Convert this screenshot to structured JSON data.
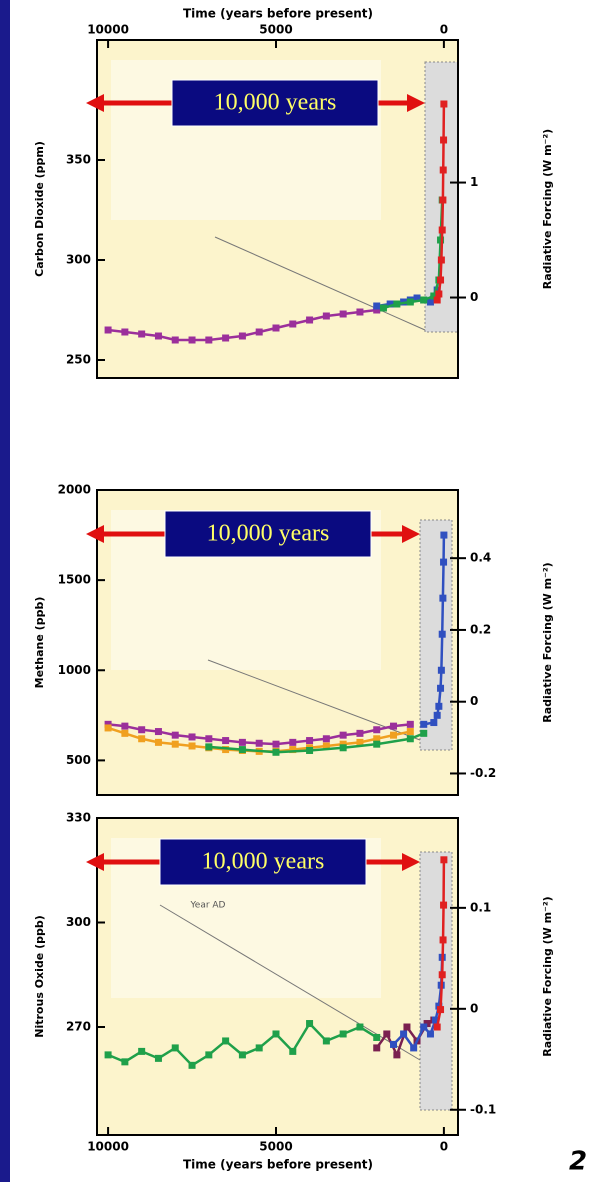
{
  "chart_data": [
    {
      "type": "line",
      "ylabel": "Carbon Dioxide (ppm)",
      "y2label": "Radiative Forcing (W m⁻²)",
      "xlabel": "Time (years before present)",
      "xaxis_position": "top",
      "annotation": "10,000 years",
      "xlim": [
        10330,
        -420
      ],
      "xticks": [
        10000,
        5000,
        0
      ],
      "ylim": [
        241,
        410
      ],
      "yticks": [
        250,
        300,
        350
      ],
      "y2lim": [
        -0.7,
        2.24
      ],
      "y2ticks": [
        0,
        1
      ],
      "series": [
        {
          "color": "#9b2f9b",
          "x": [
            10000,
            9500,
            9000,
            8500,
            8000,
            7500,
            7000,
            6500,
            6000,
            5500,
            5000,
            4500,
            4000,
            3500,
            3000,
            2500,
            2000
          ],
          "values": [
            265,
            264,
            263,
            262,
            260,
            260,
            260,
            261,
            262,
            264,
            266,
            268,
            270,
            272,
            273,
            274,
            275
          ]
        },
        {
          "color": "#3050c0",
          "x": [
            2000,
            1600,
            1200,
            1000,
            800,
            600,
            400,
            300,
            200
          ],
          "values": [
            277,
            278,
            279,
            280,
            281,
            280,
            279,
            281,
            285
          ]
        },
        {
          "color": "#1fa04a",
          "x": [
            1800,
            1400,
            1000,
            600,
            300,
            150,
            100,
            50
          ],
          "values": [
            276,
            278,
            279,
            280,
            282,
            290,
            310,
            330
          ]
        },
        {
          "color": "#e02020",
          "x": [
            200,
            150,
            100,
            75,
            50,
            30,
            20,
            10,
            0
          ],
          "values": [
            280,
            283,
            290,
            300,
            315,
            330,
            345,
            360,
            378
          ]
        }
      ]
    },
    {
      "type": "line",
      "ylabel": "Methane (ppb)",
      "y2label": "Radiative Forcing (W m⁻²)",
      "annotation": "10,000 years",
      "xlim": [
        10330,
        -420
      ],
      "ylim": [
        308,
        2000
      ],
      "yticks": [
        500,
        1000,
        1500,
        2000
      ],
      "y2lim": [
        -0.26,
        0.59
      ],
      "y2ticks": [
        -0.2,
        0,
        0.2,
        0.4
      ],
      "series": [
        {
          "color": "#9b2f9b",
          "x": [
            10000,
            9500,
            9000,
            8500,
            8000,
            7500,
            7000,
            6500,
            6000,
            5500,
            5000,
            4500,
            4000,
            3500,
            3000,
            2500,
            2000,
            1500,
            1000
          ],
          "values": [
            700,
            690,
            670,
            660,
            640,
            630,
            620,
            610,
            600,
            595,
            590,
            600,
            610,
            620,
            640,
            650,
            670,
            690,
            700
          ]
        },
        {
          "color": "#f0a020",
          "x": [
            10000,
            9500,
            9000,
            8500,
            8000,
            7500,
            7000,
            6500,
            6000,
            5500,
            5000,
            4500,
            4000,
            3500,
            3000,
            2500,
            2000,
            1500,
            1000
          ],
          "values": [
            680,
            650,
            620,
            600,
            590,
            580,
            570,
            560,
            555,
            550,
            550,
            560,
            570,
            580,
            590,
            600,
            620,
            640,
            660
          ]
        },
        {
          "color": "#1fa04a",
          "x": [
            7000,
            6000,
            5000,
            4000,
            3000,
            2000,
            1000,
            600
          ],
          "values": [
            575,
            560,
            545,
            555,
            570,
            590,
            620,
            650
          ]
        },
        {
          "color": "#3050c0",
          "x": [
            600,
            300,
            200,
            150,
            100,
            75,
            50,
            30,
            10,
            0
          ],
          "values": [
            700,
            710,
            750,
            800,
            900,
            1000,
            1200,
            1400,
            1600,
            1750
          ]
        }
      ]
    },
    {
      "type": "line",
      "ylabel": "Nitrous Oxide (ppb)",
      "y2label": "Radiative Forcing (W m⁻²)",
      "xlabel": "Time (years before present)",
      "xaxis_position": "bottom",
      "annotation": "10,000 years",
      "note": "Year AD",
      "xlim": [
        10330,
        -420
      ],
      "xticks": [
        10000,
        5000,
        0
      ],
      "ylim": [
        239,
        330
      ],
      "yticks": [
        270,
        300,
        330
      ],
      "y2lim": [
        -0.125,
        0.189
      ],
      "y2ticks": [
        -0.1,
        0,
        0.1
      ],
      "series": [
        {
          "color": "#1fa04a",
          "x": [
            10000,
            9500,
            9000,
            8500,
            8000,
            7500,
            7000,
            6500,
            6000,
            5500,
            5000,
            4500,
            4000,
            3500,
            3000,
            2500,
            2000
          ],
          "values": [
            262,
            260,
            263,
            261,
            264,
            259,
            262,
            266,
            262,
            264,
            268,
            263,
            271,
            266,
            268,
            270,
            267
          ]
        },
        {
          "color": "#7a2050",
          "x": [
            2000,
            1700,
            1400,
            1100,
            800,
            500,
            300
          ],
          "values": [
            264,
            268,
            262,
            270,
            266,
            271,
            272
          ]
        },
        {
          "color": "#3050c0",
          "x": [
            1500,
            1200,
            900,
            600,
            400,
            250,
            150,
            80,
            50
          ],
          "values": [
            265,
            268,
            264,
            270,
            268,
            272,
            276,
            282,
            290
          ]
        },
        {
          "color": "#e02020",
          "x": [
            200,
            100,
            50,
            25,
            10,
            0
          ],
          "values": [
            270,
            275,
            285,
            295,
            305,
            318
          ]
        }
      ]
    }
  ],
  "page_number": 2
}
